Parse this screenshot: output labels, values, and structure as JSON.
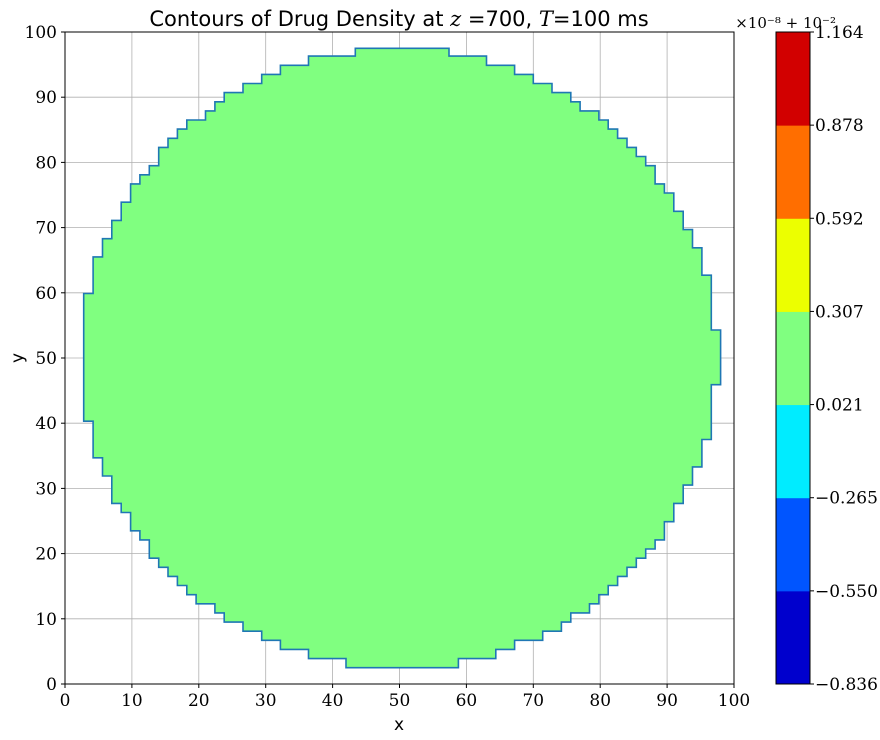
{
  "chart_data": {
    "type": "heatmap",
    "title": "Contours of Drug Density at z =700, T=100 ms",
    "title_parts": [
      "Contours of Drug Density at ",
      "z",
      " =700, ",
      "T",
      "=100 ms"
    ],
    "xlabel": "x",
    "ylabel": "y",
    "xlim": [
      0,
      100
    ],
    "ylim": [
      0,
      100
    ],
    "xticks": [
      0,
      10,
      20,
      30,
      40,
      50,
      60,
      70,
      80,
      90,
      100
    ],
    "yticks": [
      0,
      10,
      20,
      30,
      40,
      50,
      60,
      70,
      80,
      90,
      100
    ],
    "grid": true,
    "region": {
      "shape": "disk",
      "center": [
        50,
        50
      ],
      "radius": 47.5,
      "level_index": 3,
      "fill_color": "#80ff80",
      "edge_color": "#1f77b4"
    },
    "colorbar": {
      "offset_text": "×10⁻⁸ + 10⁻²",
      "tick_labels": [
        "−0.836",
        "−0.550",
        "−0.265",
        "0.021",
        "0.307",
        "0.592",
        "0.878",
        "1.164"
      ],
      "levels": [
        -0.836,
        -0.55,
        -0.265,
        0.021,
        0.307,
        0.592,
        0.878,
        1.164
      ],
      "colors": [
        "#0000cd",
        "#0055ff",
        "#00ecff",
        "#80ff80",
        "#ecff00",
        "#ff6e00",
        "#d20000"
      ]
    }
  }
}
